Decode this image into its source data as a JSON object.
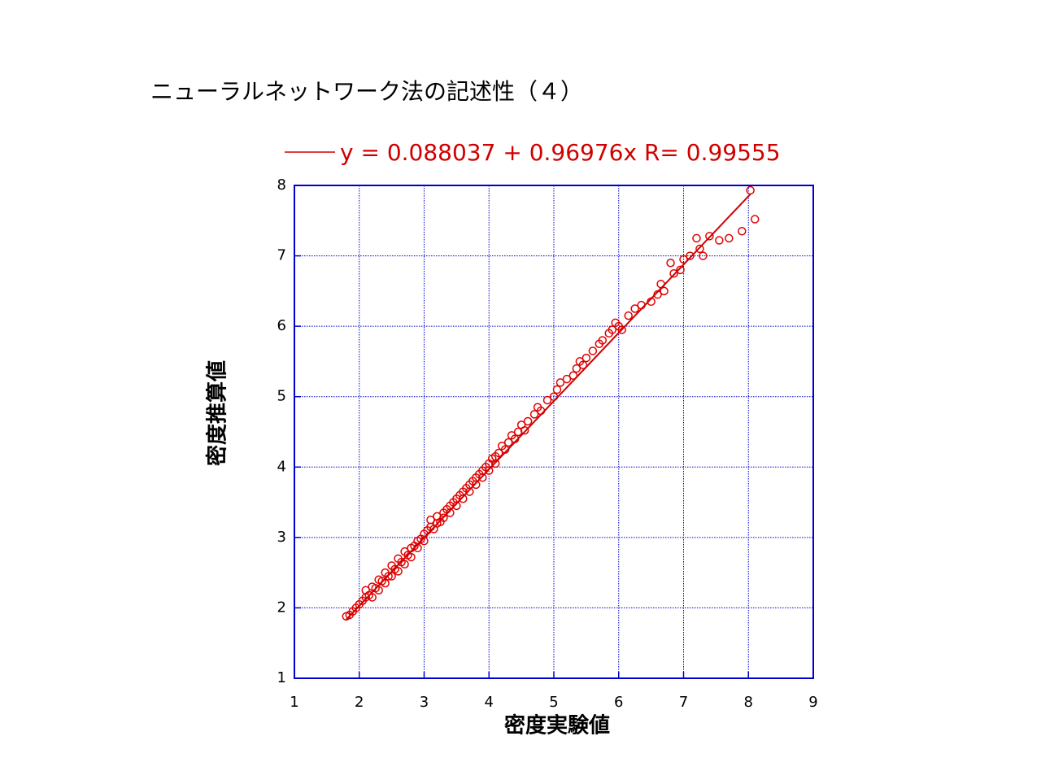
{
  "chart_data": {
    "type": "scatter",
    "title": "ニューラルネットワーク法の記述性（４）",
    "x_label": "密度実験値",
    "y_label": "密度推算値",
    "xlim": [
      1,
      9
    ],
    "xticks": [
      1,
      2,
      3,
      4,
      5,
      6,
      7,
      8,
      9
    ],
    "ylim": [
      1,
      8
    ],
    "yticks": [
      1,
      2,
      3,
      4,
      5,
      6,
      7,
      8
    ],
    "grid": true,
    "legend": "top",
    "series": [
      {
        "type": "scatter",
        "color": "#e00000",
        "x": [
          1.8,
          1.85,
          1.9,
          1.95,
          2.0,
          2.05,
          2.1,
          2.1,
          2.15,
          2.2,
          2.2,
          2.25,
          2.3,
          2.3,
          2.35,
          2.4,
          2.4,
          2.45,
          2.5,
          2.5,
          2.55,
          2.6,
          2.6,
          2.65,
          2.7,
          2.7,
          2.75,
          2.8,
          2.8,
          2.85,
          2.9,
          2.9,
          2.95,
          3.0,
          3.0,
          3.05,
          3.1,
          3.1,
          3.15,
          3.2,
          3.2,
          3.25,
          3.3,
          3.3,
          3.35,
          3.4,
          3.4,
          3.45,
          3.5,
          3.5,
          3.55,
          3.6,
          3.6,
          3.65,
          3.7,
          3.7,
          3.75,
          3.8,
          3.8,
          3.85,
          3.9,
          3.9,
          3.95,
          4.0,
          4.0,
          4.05,
          4.1,
          4.1,
          4.15,
          4.2,
          4.25,
          4.3,
          4.35,
          4.4,
          4.45,
          4.5,
          4.55,
          4.6,
          4.7,
          4.75,
          4.8,
          4.9,
          5.0,
          5.05,
          5.1,
          5.2,
          5.3,
          5.35,
          5.4,
          5.45,
          5.5,
          5.6,
          5.7,
          5.75,
          5.85,
          5.9,
          5.95,
          6.0,
          6.05,
          6.15,
          6.25,
          6.35,
          6.5,
          6.6,
          6.65,
          6.7,
          6.8,
          6.85,
          6.95,
          7.0,
          7.1,
          7.2,
          7.25,
          7.3,
          7.4,
          7.55,
          7.7,
          7.9,
          8.03,
          8.1
        ],
        "values": [
          1.88,
          1.9,
          1.95,
          2.0,
          2.05,
          2.1,
          2.15,
          2.25,
          2.18,
          2.3,
          2.15,
          2.28,
          2.4,
          2.25,
          2.38,
          2.5,
          2.35,
          2.45,
          2.6,
          2.45,
          2.55,
          2.7,
          2.52,
          2.65,
          2.8,
          2.62,
          2.75,
          2.85,
          2.72,
          2.88,
          2.95,
          2.85,
          2.98,
          3.05,
          2.95,
          3.1,
          3.15,
          3.25,
          3.12,
          3.2,
          3.3,
          3.22,
          3.35,
          3.28,
          3.4,
          3.45,
          3.35,
          3.5,
          3.55,
          3.45,
          3.6,
          3.65,
          3.55,
          3.7,
          3.75,
          3.65,
          3.8,
          3.85,
          3.75,
          3.9,
          3.95,
          3.85,
          4.0,
          4.05,
          3.95,
          4.12,
          4.15,
          4.05,
          4.2,
          4.3,
          4.25,
          4.35,
          4.45,
          4.4,
          4.5,
          4.6,
          4.52,
          4.65,
          4.75,
          4.85,
          4.8,
          4.95,
          5.0,
          5.1,
          5.2,
          5.25,
          5.3,
          5.4,
          5.5,
          5.45,
          5.55,
          5.65,
          5.75,
          5.8,
          5.9,
          5.95,
          6.05,
          6.0,
          5.95,
          6.15,
          6.25,
          6.3,
          6.35,
          6.45,
          6.6,
          6.5,
          6.9,
          6.75,
          6.8,
          6.95,
          7.0,
          7.25,
          7.1,
          7.0,
          7.28,
          7.22,
          7.25,
          7.35,
          7.93,
          7.52
        ]
      },
      {
        "type": "line",
        "color": "#d00000",
        "name": "y = 0.088037 + 0.96976x R= 0.99555",
        "x": [
          1.8,
          8.03
        ],
        "values": [
          1.834,
          7.875
        ]
      }
    ]
  }
}
